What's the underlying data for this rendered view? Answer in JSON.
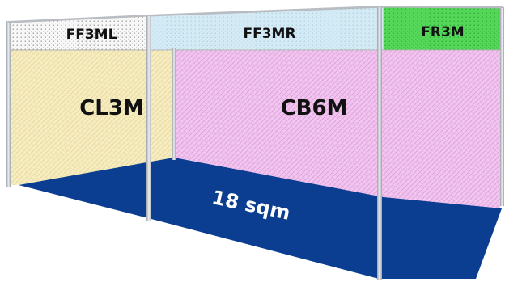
{
  "booth": {
    "fascia": {
      "left": "FF3ML",
      "middle": "FF3MR",
      "right": "FR3M"
    },
    "walls": {
      "left": "CL3M",
      "back": "CB6M"
    },
    "floor_area": "18 sqm"
  },
  "colors": {
    "left_wall": "#f6ecbe",
    "back_wall": "#f0c2ef",
    "floor": "#0a3d8f",
    "fascia_left": "#f4f4f4",
    "fascia_middle": "#d3e9f4",
    "fascia_right": "#55d85a",
    "frame": "#b9bdc4"
  }
}
